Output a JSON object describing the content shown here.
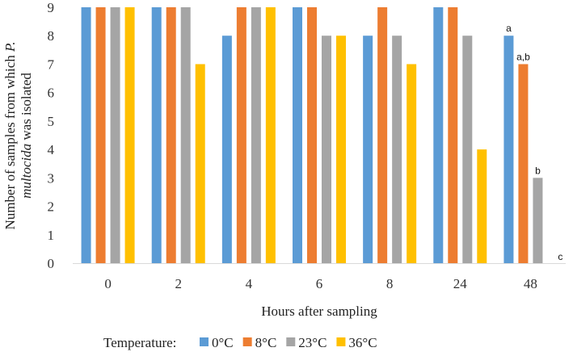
{
  "chart_data": {
    "type": "bar",
    "title": "",
    "xlabel": "Hours after sampling",
    "ylabel_parts": [
      {
        "line": 1,
        "text": "Number of samples from which ",
        "italic": false
      },
      {
        "line": 1,
        "text": "P.",
        "italic": true
      },
      {
        "line": 2,
        "text": "multocida",
        "italic": true
      },
      {
        "line": 2,
        "text": " was isolated",
        "italic": false
      }
    ],
    "categories": [
      "0",
      "2",
      "4",
      "6",
      "8",
      "24",
      "48"
    ],
    "ylim": [
      0,
      9
    ],
    "yticks": [
      0,
      1,
      2,
      3,
      4,
      5,
      6,
      7,
      8,
      9
    ],
    "grid": false,
    "legend_title": "Temperature:",
    "legend_position": "bottom",
    "series": [
      {
        "name": "0°C",
        "color": "#5B9BD5",
        "values": [
          9,
          9,
          8,
          9,
          8,
          9,
          8
        ]
      },
      {
        "name": "8°C",
        "color": "#ED7D31",
        "values": [
          9,
          9,
          9,
          9,
          9,
          9,
          7
        ]
      },
      {
        "name": "23°C",
        "color": "#A5A5A5",
        "values": [
          9,
          9,
          9,
          8,
          8,
          8,
          3
        ]
      },
      {
        "name": "36°C",
        "color": "#FFC000",
        "values": [
          9,
          7,
          9,
          8,
          7,
          4,
          0
        ]
      }
    ],
    "annotations": [
      {
        "category": "48",
        "series": "0°C",
        "text": "a"
      },
      {
        "category": "48",
        "series": "8°C",
        "text": "a,b"
      },
      {
        "category": "48",
        "series": "23°C",
        "text": "b"
      },
      {
        "category": "48",
        "series": "36°C",
        "text": "c"
      }
    ]
  }
}
